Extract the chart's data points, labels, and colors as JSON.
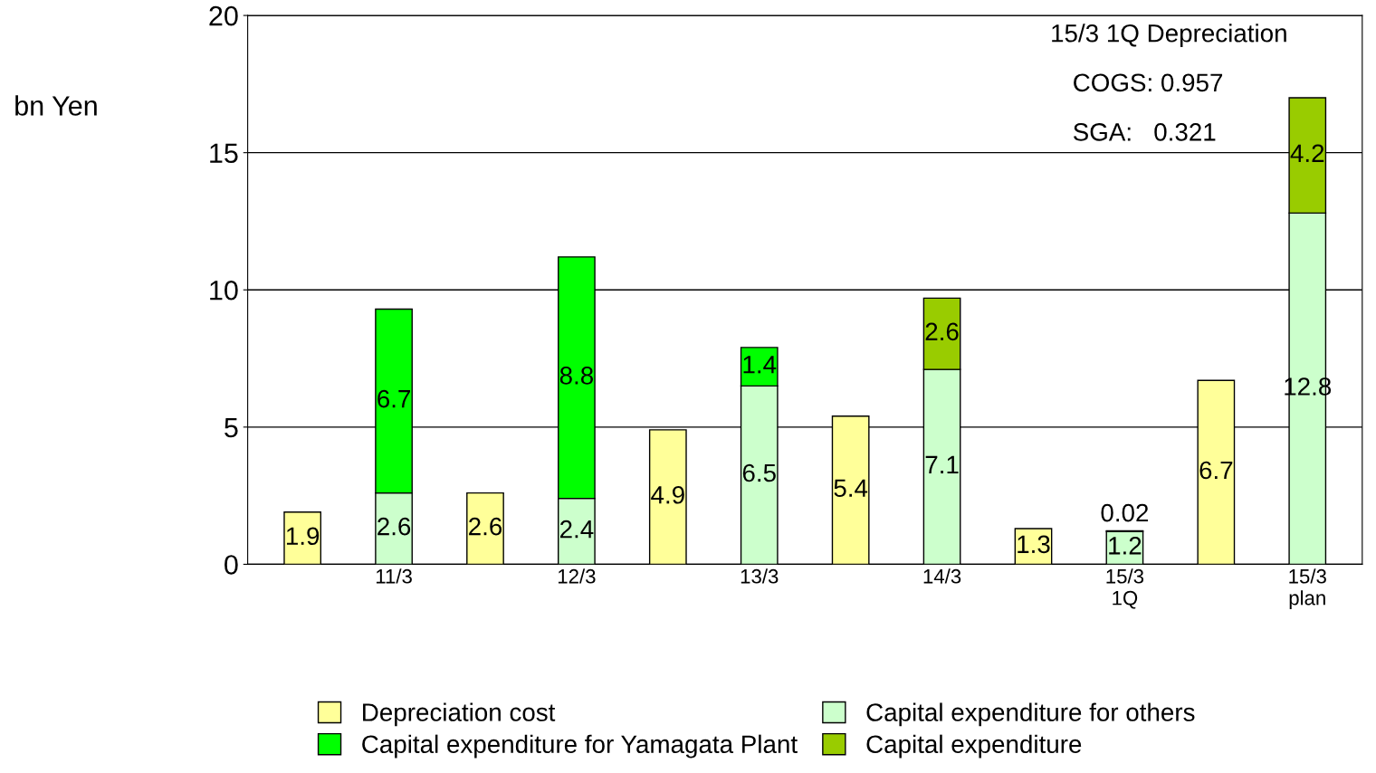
{
  "chart_data": {
    "type": "bar",
    "ylabel": "bn Yen",
    "stacked": true,
    "data_labels": true,
    "grid": "y",
    "legend": "bottom",
    "categories": [
      null,
      "11/3",
      null,
      "12/3",
      null,
      "13/3",
      null,
      "14/3",
      null,
      "15/3\n1Q",
      null,
      "15/3\nplan"
    ],
    "ylim": [
      0,
      20
    ],
    "yticks": [
      0,
      5,
      10,
      15,
      20
    ],
    "series": [
      {
        "name": "Depreciation cost",
        "color": "#ffff99",
        "values": [
          1.9,
          null,
          2.6,
          null,
          4.9,
          null,
          5.4,
          null,
          1.3,
          null,
          6.7,
          null
        ]
      },
      {
        "name": "Capital expenditure for others",
        "color": "#ccffcc",
        "values": [
          null,
          2.6,
          null,
          2.4,
          null,
          6.5,
          null,
          7.1,
          null,
          1.2,
          null,
          12.8
        ]
      },
      {
        "name": "Capital expenditure for Yamagata Plant",
        "color": "#00ff00",
        "values": [
          null,
          6.7,
          null,
          8.8,
          null,
          1.4,
          null,
          null,
          null,
          null,
          null,
          null
        ]
      },
      {
        "name": "Capital expenditure",
        "color": "#99cc00",
        "values": [
          null,
          null,
          null,
          null,
          null,
          null,
          null,
          2.6,
          null,
          0.02,
          null,
          4.2
        ]
      }
    ],
    "annotations": [
      "15/3 1Q Depreciation",
      "COGS: 0.957",
      "SGA:   0.321"
    ]
  }
}
